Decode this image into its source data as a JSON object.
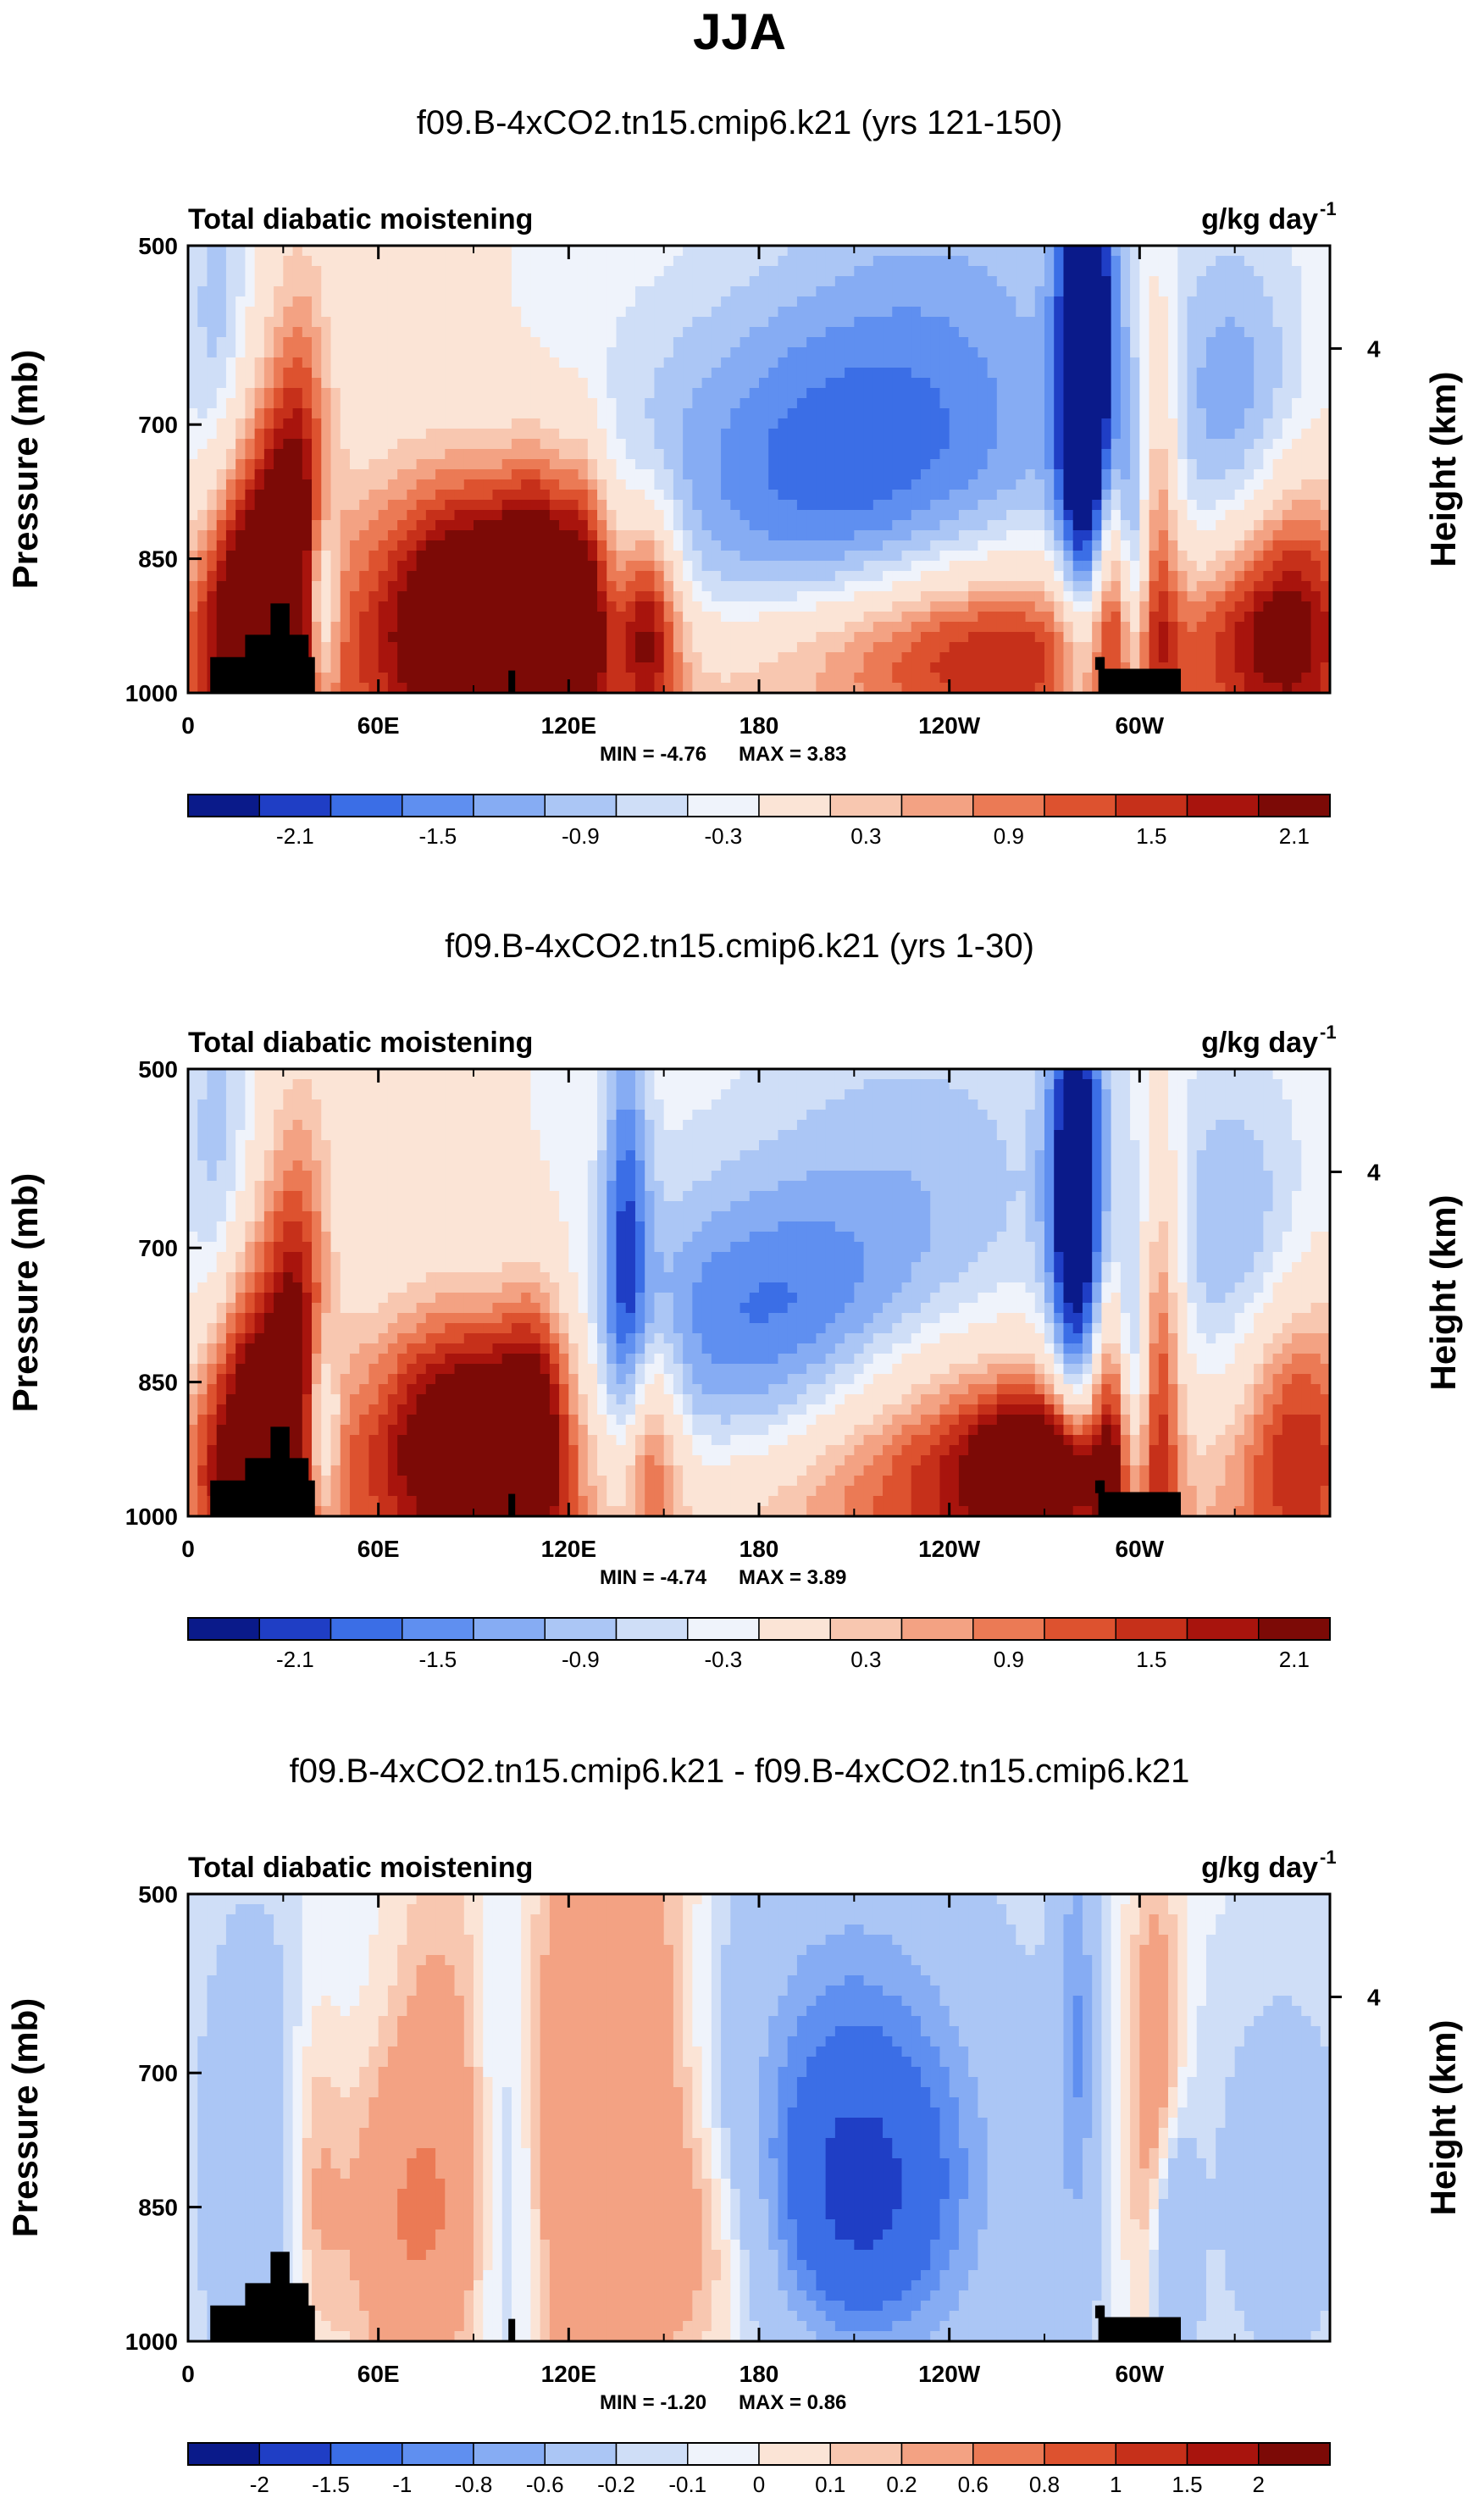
{
  "figure_title": "JJA",
  "chart_data": [
    {
      "type": "heatmap",
      "title": "f09.B-4xCO2.tn15.cmip6.k21 (yrs 121-150)",
      "left_string": "Total diabatic moistening",
      "units": "g/kg day",
      "units_exponent": "-1",
      "xlabel": "",
      "ylabel": "Pressure (mb)",
      "ylabel_right": "Height (km)",
      "x_ticks": [
        "0",
        "60E",
        "120E",
        "180",
        "120W",
        "60W"
      ],
      "y_ticks": [
        "500",
        "700",
        "850",
        "1000"
      ],
      "y_ticks_right": [
        "4"
      ],
      "min_label": "MIN = -4.76",
      "max_label": "MAX =   3.83",
      "min": -4.76,
      "max": 3.83,
      "colorbar_labels": [
        "-2.1",
        "-1.5",
        "-0.9",
        "-0.3",
        "0.3",
        "0.9",
        "1.5",
        "2.1"
      ],
      "features": [
        {
          "lon": 92,
          "p": 905,
          "v": 2.3,
          "wl": 20,
          "wp": 110
        },
        {
          "lon": 75,
          "p": 915,
          "v": 1.4,
          "wl": 40,
          "wp": 110
        },
        {
          "lon": 20,
          "p": 830,
          "v": 1.8,
          "wl": 10,
          "wp": 140
        },
        {
          "lon": 35,
          "p": 800,
          "v": 2.0,
          "wl": 7,
          "wp": 170
        },
        {
          "lon": 15,
          "p": 930,
          "v": 1.6,
          "wl": 14,
          "wp": 90
        },
        {
          "lon": 42,
          "p": 905,
          "v": -2.1,
          "wl": 4,
          "wp": 80
        },
        {
          "lon": 110,
          "p": 900,
          "v": 1.7,
          "wl": 8,
          "wp": 120
        },
        {
          "lon": 125,
          "p": 900,
          "v": 1.9,
          "wl": 6,
          "wp": 120
        },
        {
          "lon": 145,
          "p": 920,
          "v": 2.0,
          "wl": 7,
          "wp": 90
        },
        {
          "lon": 195,
          "p": 760,
          "v": -1.3,
          "wl": 45,
          "wp": 140
        },
        {
          "lon": 255,
          "p": 940,
          "v": 1.6,
          "wl": 35,
          "wp": 80
        },
        {
          "lon": 218,
          "p": 950,
          "v": 0.7,
          "wl": 50,
          "wp": 60
        },
        {
          "lon": 283,
          "p": 640,
          "v": -3.4,
          "wl": 6,
          "wp": 210
        },
        {
          "lon": 292,
          "p": 880,
          "v": 1.5,
          "wl": 5,
          "wp": 120
        },
        {
          "lon": 298,
          "p": 860,
          "v": -1.8,
          "wl": 4,
          "wp": 140
        },
        {
          "lon": 305,
          "p": 800,
          "v": 1.5,
          "wl": 5,
          "wp": 170
        },
        {
          "lon": 350,
          "p": 905,
          "v": 2.0,
          "wl": 15,
          "wp": 110
        },
        {
          "lon": 330,
          "p": 930,
          "v": 1.1,
          "wl": 18,
          "wp": 80
        },
        {
          "lon": 330,
          "p": 680,
          "v": -1.0,
          "wl": 15,
          "wp": 140
        },
        {
          "lon": 240,
          "p": 620,
          "v": -0.8,
          "wl": 40,
          "wp": 200
        },
        {
          "lon": 60,
          "p": 520,
          "v": 0.3,
          "wl": 25,
          "wp": 150
        },
        {
          "lon": 10,
          "p": 620,
          "v": -0.9,
          "wl": 8,
          "wp": 170
        }
      ]
    },
    {
      "type": "heatmap",
      "title": "f09.B-4xCO2.tn15.cmip6.k21 (yrs 1-30)",
      "left_string": "Total diabatic moistening",
      "units": "g/kg day",
      "units_exponent": "-1",
      "xlabel": "",
      "ylabel": "Pressure (mb)",
      "ylabel_right": "Height (km)",
      "x_ticks": [
        "0",
        "60E",
        "120E",
        "180",
        "120W",
        "60W"
      ],
      "y_ticks": [
        "500",
        "700",
        "850",
        "1000"
      ],
      "y_ticks_right": [
        "4"
      ],
      "min_label": "MIN = -4.74",
      "max_label": "MAX =   3.89",
      "min": -4.74,
      "max": 3.89,
      "colorbar_labels": [
        "-2.1",
        "-1.5",
        "-0.9",
        "-0.3",
        "0.3",
        "0.9",
        "1.5",
        "2.1"
      ],
      "features": [
        {
          "lon": 90,
          "p": 905,
          "v": 2.2,
          "wl": 18,
          "wp": 100
        },
        {
          "lon": 72,
          "p": 920,
          "v": 1.3,
          "wl": 35,
          "wp": 100
        },
        {
          "lon": 20,
          "p": 830,
          "v": 1.7,
          "wl": 10,
          "wp": 140
        },
        {
          "lon": 35,
          "p": 800,
          "v": 1.9,
          "wl": 7,
          "wp": 170
        },
        {
          "lon": 15,
          "p": 930,
          "v": 1.5,
          "wl": 14,
          "wp": 90
        },
        {
          "lon": 42,
          "p": 905,
          "v": -2.0,
          "wl": 4,
          "wp": 80
        },
        {
          "lon": 110,
          "p": 900,
          "v": 1.6,
          "wl": 8,
          "wp": 120
        },
        {
          "lon": 138,
          "p": 700,
          "v": -1.5,
          "wl": 5,
          "wp": 200
        },
        {
          "lon": 145,
          "p": 920,
          "v": 1.4,
          "wl": 7,
          "wp": 90
        },
        {
          "lon": 180,
          "p": 790,
          "v": -1.4,
          "wl": 35,
          "wp": 110
        },
        {
          "lon": 245,
          "p": 930,
          "v": 2.0,
          "wl": 40,
          "wp": 100
        },
        {
          "lon": 270,
          "p": 950,
          "v": 2.4,
          "wl": 15,
          "wp": 60
        },
        {
          "lon": 280,
          "p": 650,
          "v": -2.8,
          "wl": 6,
          "wp": 200
        },
        {
          "lon": 292,
          "p": 880,
          "v": 1.4,
          "wl": 5,
          "wp": 120
        },
        {
          "lon": 298,
          "p": 860,
          "v": -1.7,
          "wl": 4,
          "wp": 140
        },
        {
          "lon": 306,
          "p": 820,
          "v": 1.6,
          "wl": 5,
          "wp": 170
        },
        {
          "lon": 350,
          "p": 905,
          "v": 2.0,
          "wl": 15,
          "wp": 110
        },
        {
          "lon": 330,
          "p": 700,
          "v": -0.9,
          "wl": 15,
          "wp": 140
        },
        {
          "lon": 60,
          "p": 520,
          "v": 0.3,
          "wl": 25,
          "wp": 150
        },
        {
          "lon": 10,
          "p": 620,
          "v": -0.9,
          "wl": 8,
          "wp": 170
        },
        {
          "lon": 230,
          "p": 640,
          "v": -0.7,
          "wl": 40,
          "wp": 180
        }
      ]
    },
    {
      "type": "heatmap",
      "title": "f09.B-4xCO2.tn15.cmip6.k21 - f09.B-4xCO2.tn15.cmip6.k21",
      "left_string": "Total diabatic moistening",
      "units": "g/kg day",
      "units_exponent": "-1",
      "xlabel": "",
      "ylabel": "Pressure (mb)",
      "ylabel_right": "Height (km)",
      "x_ticks": [
        "0",
        "60E",
        "120E",
        "180",
        "120W",
        "60W"
      ],
      "y_ticks": [
        "500",
        "700",
        "850",
        "1000"
      ],
      "y_ticks_right": [
        "4"
      ],
      "min_label": "MIN = -1.20",
      "max_label": "MAX =  0.86",
      "min": -1.2,
      "max": 0.86,
      "colorbar_labels": [
        "-2",
        "-1.5",
        "-1",
        "-0.8",
        "-0.6",
        "-0.2",
        "-0.1",
        "0",
        "0.1",
        "0.2",
        "0.6",
        "0.8",
        "1",
        "1.5",
        "2"
      ],
      "features": [
        {
          "lon": 70,
          "p": 870,
          "v": 0.55,
          "wl": 15,
          "wp": 120
        },
        {
          "lon": 80,
          "p": 700,
          "v": 0.3,
          "wl": 12,
          "wp": 200
        },
        {
          "lon": 120,
          "p": 750,
          "v": 0.45,
          "wl": 10,
          "wp": 260
        },
        {
          "lon": 145,
          "p": 700,
          "v": 0.4,
          "wl": 12,
          "wp": 260
        },
        {
          "lon": 165,
          "p": 880,
          "v": 0.3,
          "wl": 15,
          "wp": 100
        },
        {
          "lon": 210,
          "p": 850,
          "v": -0.95,
          "wl": 20,
          "wp": 110
        },
        {
          "lon": 205,
          "p": 700,
          "v": -0.7,
          "wl": 25,
          "wp": 180
        },
        {
          "lon": 240,
          "p": 820,
          "v": -0.4,
          "wl": 25,
          "wp": 200
        },
        {
          "lon": 280,
          "p": 650,
          "v": -0.7,
          "wl": 5,
          "wp": 200
        },
        {
          "lon": 305,
          "p": 750,
          "v": 0.5,
          "wl": 6,
          "wp": 200
        },
        {
          "lon": 310,
          "p": 900,
          "v": -0.7,
          "wl": 5,
          "wp": 100
        },
        {
          "lon": 20,
          "p": 800,
          "v": -0.3,
          "wl": 15,
          "wp": 250
        },
        {
          "lon": 40,
          "p": 820,
          "v": 0.3,
          "wl": 6,
          "wp": 150
        },
        {
          "lon": 345,
          "p": 820,
          "v": -0.25,
          "wl": 20,
          "wp": 200
        },
        {
          "lon": 100,
          "p": 820,
          "v": -0.25,
          "wl": 8,
          "wp": 200
        }
      ]
    }
  ],
  "colors": {
    "diverging": [
      "#0a1a8a",
      "#1f3ec5",
      "#3b6ee6",
      "#5f8ff0",
      "#86acf3",
      "#abc6f5",
      "#cfdef7",
      "#eff3fb",
      "#fbe4d6",
      "#f8c7b0",
      "#f3a283",
      "#eb7a55",
      "#dd522f",
      "#c6301a",
      "#a8140d",
      "#7c0a06"
    ],
    "topography": "#000000"
  }
}
